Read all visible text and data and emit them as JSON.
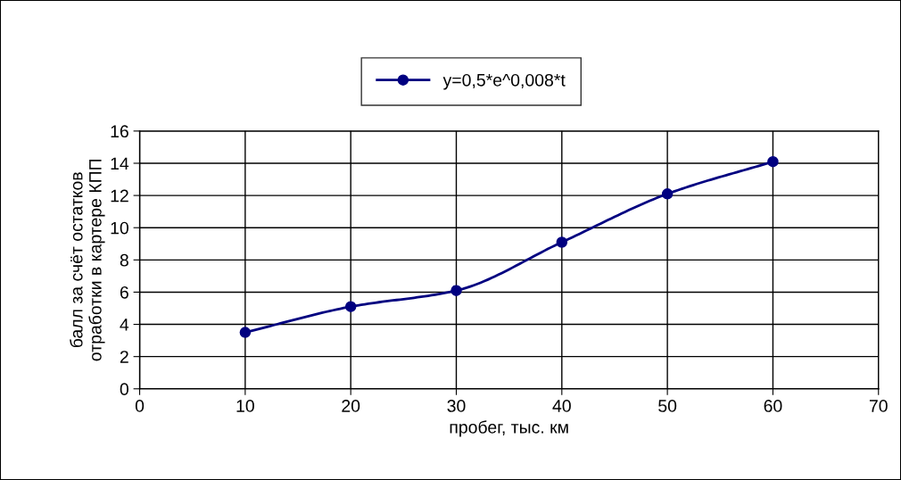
{
  "chart_data": {
    "type": "line",
    "xlabel": "пробег, тыс. км",
    "ylabel": "балл за счёт остатков\nотработки в картере КПП",
    "x": [
      10,
      20,
      30,
      40,
      50,
      60
    ],
    "series": [
      {
        "name": "y=0,5*e^0,008*t",
        "color": "#000080",
        "values": [
          3.5,
          5.1,
          6.1,
          9.1,
          12.1,
          14.1
        ]
      }
    ],
    "xlim": [
      0,
      70
    ],
    "xticks": [
      0,
      10,
      20,
      30,
      40,
      50,
      60,
      70
    ],
    "ylim": [
      0,
      16
    ],
    "yticks": [
      0,
      2,
      4,
      6,
      8,
      10,
      12,
      14,
      16
    ],
    "grid": true,
    "legend": "top",
    "marker": "circle",
    "line_style": "solid"
  }
}
